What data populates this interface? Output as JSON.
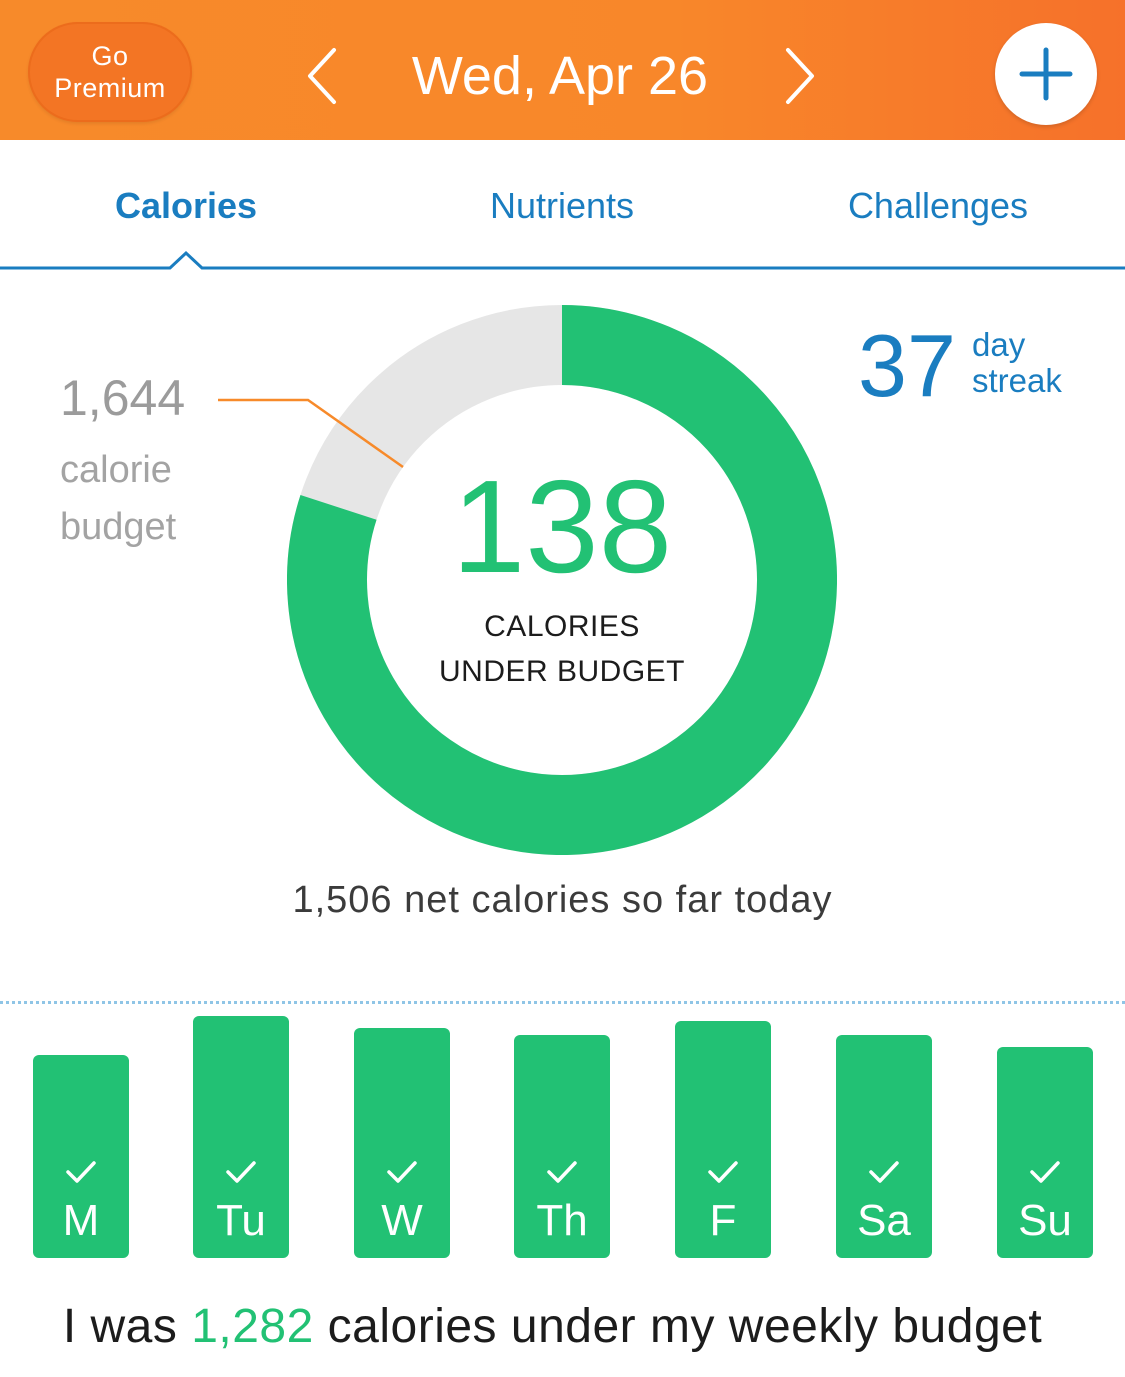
{
  "header": {
    "premium_label_line1": "Go",
    "premium_label_line2": "Premium",
    "date": "Wed, Apr 26",
    "prev_icon": "chevron-left-icon",
    "next_icon": "chevron-right-icon",
    "add_icon": "plus-icon"
  },
  "tabs": [
    {
      "label": "Calories",
      "active": true
    },
    {
      "label": "Nutrients",
      "active": false
    },
    {
      "label": "Challenges",
      "active": false
    }
  ],
  "summary": {
    "budget_value": "1,644",
    "budget_label_line1": "calorie",
    "budget_label_line2": "budget",
    "under_value": "138",
    "under_label_line1": "CALORIES",
    "under_label_line2": "UNDER BUDGET",
    "progress_fraction": 0.8,
    "streak_value": "37",
    "streak_label_line1": "day",
    "streak_label_line2": "streak",
    "net_text": "1,506 net calories so far today"
  },
  "week": {
    "days": [
      {
        "label": "M",
        "level": 0.84,
        "checked": true
      },
      {
        "label": "Tu",
        "level": 1.0,
        "checked": true
      },
      {
        "label": "W",
        "level": 0.95,
        "checked": true
      },
      {
        "label": "Th",
        "level": 0.92,
        "checked": true
      },
      {
        "label": "F",
        "level": 0.98,
        "checked": true
      },
      {
        "label": "Sa",
        "level": 0.92,
        "checked": true
      },
      {
        "label": "Su",
        "level": 0.87,
        "checked": true
      }
    ],
    "summary_prefix": "I was ",
    "summary_value": "1,282",
    "summary_suffix": " calories under my weekly budget"
  },
  "colors": {
    "header_orange": "#f7852a",
    "accent_blue": "#1a7dc0",
    "green": "#22c174",
    "ring_gray": "#e6e6e6"
  }
}
